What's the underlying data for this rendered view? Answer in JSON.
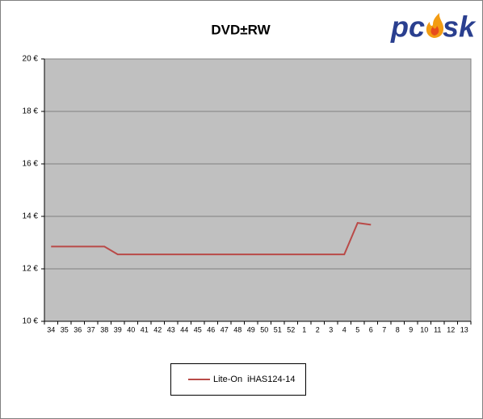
{
  "chart_data": {
    "type": "line",
    "title": "DVD±RW",
    "categories": [
      "34",
      "35",
      "36",
      "37",
      "38",
      "39",
      "40",
      "41",
      "42",
      "43",
      "44",
      "45",
      "46",
      "47",
      "48",
      "49",
      "50",
      "51",
      "52",
      "1",
      "2",
      "3",
      "4",
      "5",
      "6",
      "7",
      "8",
      "9",
      "10",
      "11",
      "12",
      "13"
    ],
    "series": [
      {
        "name": "Lite-On  iHAS124-14",
        "color": "#b94a48",
        "values": [
          12.85,
          12.85,
          12.85,
          12.85,
          12.85,
          12.55,
          12.55,
          12.55,
          12.55,
          12.55,
          12.55,
          12.55,
          12.55,
          12.55,
          12.55,
          12.55,
          12.55,
          12.55,
          12.55,
          12.55,
          12.55,
          12.55,
          12.55,
          13.75,
          13.68,
          null,
          null,
          null,
          null,
          null,
          null,
          null
        ]
      }
    ],
    "ylim": [
      10,
      20
    ],
    "yticks": [
      {
        "value": 10,
        "label": "10 €"
      },
      {
        "value": 12,
        "label": "12 €"
      },
      {
        "value": 14,
        "label": "14 €"
      },
      {
        "value": 16,
        "label": "16 €"
      },
      {
        "value": 18,
        "label": "18 €"
      },
      {
        "value": 20,
        "label": "20 €"
      }
    ],
    "grid": true,
    "legend": "bottom",
    "plot_background": "#c0c0c0"
  },
  "logo": {
    "left": "pc",
    "right": "sk"
  }
}
